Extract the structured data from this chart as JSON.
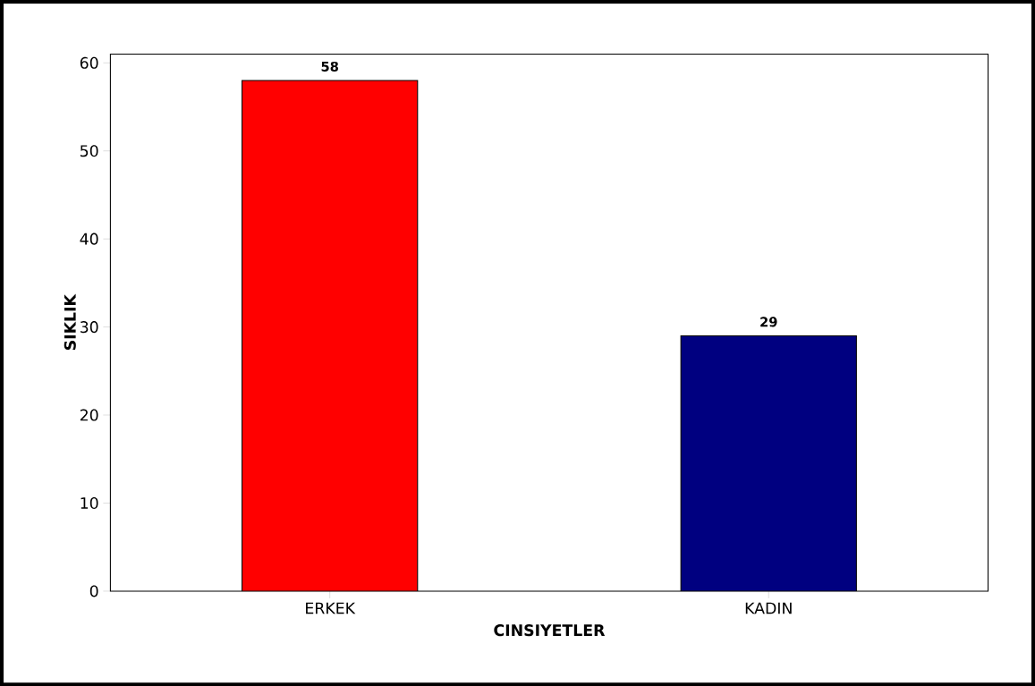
{
  "chart_data": {
    "type": "bar",
    "xlabel": "CINSIYETLER",
    "ylabel": "SIKLIK",
    "categories": [
      "ERKEK",
      "KADIN"
    ],
    "values": [
      58,
      29
    ],
    "colors": [
      "#ff0000",
      "#000080"
    ],
    "ylim": [
      0,
      61
    ],
    "yticks": [
      0,
      10,
      20,
      30,
      40,
      50,
      60
    ],
    "data_labels": true,
    "grid": false
  }
}
